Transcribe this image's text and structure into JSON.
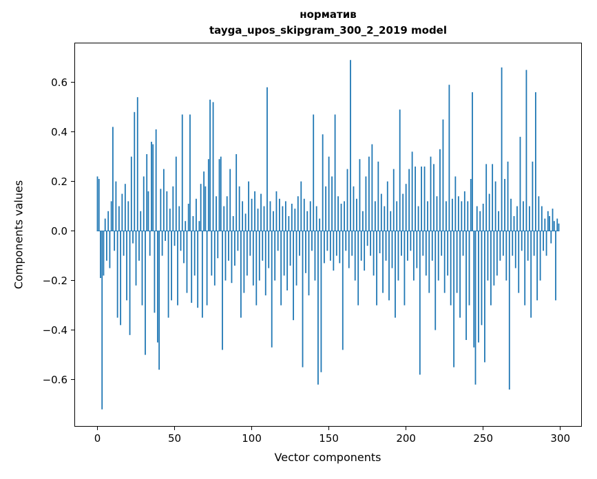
{
  "chart_data": {
    "type": "bar",
    "title_line1": "норматив",
    "title_line2": "tayga_upos_skipgram_300_2_2019 model",
    "xlabel": "Vector components",
    "ylabel": "Components values",
    "bar_color": "#1f77b4",
    "n_components": 300,
    "xlim": [
      -14.95,
      313.95
    ],
    "ylim": [
      -0.79,
      0.76
    ],
    "grid": false,
    "legend": false,
    "x_ticks": [
      {
        "v": 0,
        "label": "0"
      },
      {
        "v": 50,
        "label": "50"
      },
      {
        "v": 100,
        "label": "100"
      },
      {
        "v": 150,
        "label": "150"
      },
      {
        "v": 200,
        "label": "200"
      },
      {
        "v": 250,
        "label": "250"
      },
      {
        "v": 300,
        "label": "300"
      }
    ],
    "y_ticks": [
      {
        "v": 0.6,
        "label": "0.6"
      },
      {
        "v": 0.4,
        "label": "0.4"
      },
      {
        "v": 0.2,
        "label": "0.2"
      },
      {
        "v": 0.0,
        "label": "0.0"
      },
      {
        "v": -0.2,
        "label": "−0.2"
      },
      {
        "v": -0.4,
        "label": "−0.4"
      },
      {
        "v": -0.6,
        "label": "−0.6"
      }
    ],
    "values": [
      0.22,
      0.21,
      -0.19,
      -0.72,
      -0.18,
      0.05,
      -0.12,
      0.08,
      -0.15,
      0.12,
      0.42,
      -0.08,
      0.2,
      -0.35,
      0.1,
      -0.38,
      0.15,
      -0.1,
      0.19,
      -0.28,
      0.12,
      -0.42,
      0.3,
      -0.05,
      0.48,
      -0.22,
      0.54,
      -0.12,
      0.08,
      -0.3,
      0.22,
      -0.5,
      0.31,
      0.16,
      -0.1,
      0.36,
      0.35,
      -0.33,
      0.41,
      -0.45,
      -0.56,
      0.17,
      -0.1,
      0.25,
      -0.04,
      0.16,
      -0.35,
      0.09,
      -0.28,
      0.18,
      -0.06,
      0.3,
      -0.3,
      0.1,
      -0.08,
      0.47,
      -0.13,
      0.04,
      -0.25,
      0.11,
      0.47,
      -0.29,
      0.06,
      -0.18,
      0.13,
      -0.31,
      0.04,
      0.19,
      -0.35,
      0.24,
      0.18,
      -0.3,
      0.29,
      0.53,
      -0.18,
      0.52,
      -0.22,
      0.14,
      -0.11,
      0.29,
      0.3,
      -0.48,
      0.1,
      -0.2,
      0.14,
      -0.12,
      0.25,
      -0.21,
      0.06,
      -0.14,
      0.31,
      -0.08,
      0.18,
      -0.35,
      0.12,
      -0.25,
      0.07,
      -0.18,
      0.2,
      -0.1,
      0.13,
      -0.22,
      0.16,
      -0.3,
      0.09,
      -0.2,
      0.15,
      -0.12,
      0.1,
      -0.26,
      0.58,
      -0.15,
      0.12,
      -0.47,
      0.08,
      -0.2,
      0.16,
      -0.08,
      0.13,
      -0.3,
      0.1,
      -0.18,
      0.12,
      -0.24,
      0.06,
      -0.14,
      0.11,
      -0.36,
      0.09,
      -0.22,
      0.14,
      -0.1,
      0.2,
      -0.55,
      0.13,
      -0.17,
      0.08,
      -0.26,
      0.12,
      -0.08,
      0.47,
      -0.2,
      0.1,
      -0.62,
      0.05,
      -0.57,
      0.39,
      -0.13,
      0.18,
      -0.08,
      0.3,
      -0.12,
      0.22,
      -0.16,
      0.47,
      -0.1,
      0.14,
      -0.13,
      0.11,
      -0.48,
      0.12,
      -0.08,
      0.25,
      -0.15,
      0.69,
      -0.1,
      0.18,
      -0.2,
      0.13,
      -0.3,
      0.29,
      -0.12,
      0.08,
      -0.16,
      0.22,
      -0.06,
      0.3,
      -0.1,
      0.35,
      -0.18,
      0.12,
      -0.3,
      0.28,
      -0.09,
      0.15,
      -0.25,
      0.1,
      -0.12,
      0.2,
      -0.28,
      0.08,
      -0.15,
      0.25,
      -0.35,
      0.12,
      -0.2,
      0.49,
      -0.1,
      0.15,
      -0.3,
      0.19,
      -0.12,
      0.25,
      -0.08,
      0.32,
      -0.2,
      0.26,
      -0.15,
      0.1,
      -0.58,
      0.26,
      -0.1,
      0.26,
      -0.18,
      0.12,
      -0.25,
      0.3,
      -0.12,
      0.27,
      -0.4,
      0.14,
      -0.2,
      0.33,
      -0.1,
      0.45,
      -0.25,
      0.12,
      -0.18,
      0.59,
      -0.3,
      0.13,
      -0.55,
      0.22,
      -0.25,
      0.14,
      -0.35,
      0.12,
      -0.1,
      0.16,
      -0.44,
      0.12,
      -0.3,
      0.21,
      0.56,
      -0.47,
      -0.62,
      0.1,
      -0.45,
      0.08,
      -0.38,
      0.11,
      -0.53,
      0.27,
      -0.2,
      0.15,
      -0.3,
      0.27,
      -0.22,
      0.2,
      -0.18,
      0.08,
      -0.12,
      0.66,
      -0.1,
      0.21,
      -0.2,
      0.28,
      -0.64,
      0.13,
      -0.1,
      0.06,
      -0.15,
      0.1,
      -0.25,
      0.38,
      -0.08,
      0.12,
      -0.3,
      0.65,
      -0.12,
      0.1,
      -0.35,
      0.28,
      -0.1,
      0.56,
      -0.28,
      0.14,
      -0.2,
      0.1,
      -0.08,
      0.05,
      -0.1,
      0.08,
      0.06,
      -0.05,
      0.09,
      0.04,
      -0.28,
      0.05,
      0.03
    ]
  }
}
